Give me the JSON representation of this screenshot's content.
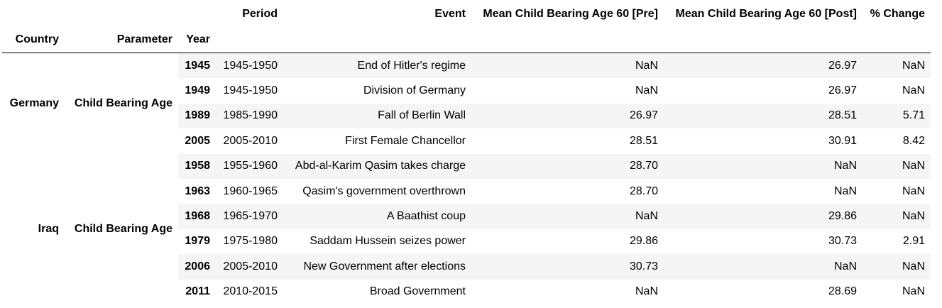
{
  "table": {
    "columns": {
      "period": "Period",
      "event": "Event",
      "pre": "Mean Child Bearing Age 60 [Pre]",
      "post": "Mean Child Bearing Age 60 [Post]",
      "change": "% Change"
    },
    "index_names": {
      "country": "Country",
      "parameter": "Parameter",
      "year": "Year"
    },
    "groups": [
      {
        "country": "Germany",
        "parameter": "Child Bearing Age",
        "rows": [
          {
            "year": "1945",
            "period": "1945-1950",
            "event": "End of Hitler's regime",
            "pre": "NaN",
            "post": "26.97",
            "change": "NaN"
          },
          {
            "year": "1949",
            "period": "1945-1950",
            "event": "Division of Germany",
            "pre": "NaN",
            "post": "26.97",
            "change": "NaN"
          },
          {
            "year": "1989",
            "period": "1985-1990",
            "event": "Fall of Berlin Wall",
            "pre": "26.97",
            "post": "28.51",
            "change": "5.71"
          },
          {
            "year": "2005",
            "period": "2005-2010",
            "event": "First Female Chancellor",
            "pre": "28.51",
            "post": "30.91",
            "change": "8.42"
          }
        ]
      },
      {
        "country": "Iraq",
        "parameter": "Child Bearing Age",
        "rows": [
          {
            "year": "1958",
            "period": "1955-1960",
            "event": "Abd-al-Karim Qasim takes charge",
            "pre": "28.70",
            "post": "NaN",
            "change": "NaN"
          },
          {
            "year": "1963",
            "period": "1960-1965",
            "event": "Qasim's government overthrown",
            "pre": "28.70",
            "post": "NaN",
            "change": "NaN"
          },
          {
            "year": "1968",
            "period": "1965-1970",
            "event": "A Baathist coup",
            "pre": "NaN",
            "post": "29.86",
            "change": "NaN"
          },
          {
            "year": "1979",
            "period": "1975-1980",
            "event": "Saddam Hussein seizes power",
            "pre": "29.86",
            "post": "30.73",
            "change": "2.91"
          },
          {
            "year": "2006",
            "period": "2005-2010",
            "event": "New Government after elections",
            "pre": "30.73",
            "post": "NaN",
            "change": "NaN"
          },
          {
            "year": "2011",
            "period": "2010-2015",
            "event": "Broad Government",
            "pre": "NaN",
            "post": "28.69",
            "change": "NaN"
          }
        ]
      }
    ]
  }
}
